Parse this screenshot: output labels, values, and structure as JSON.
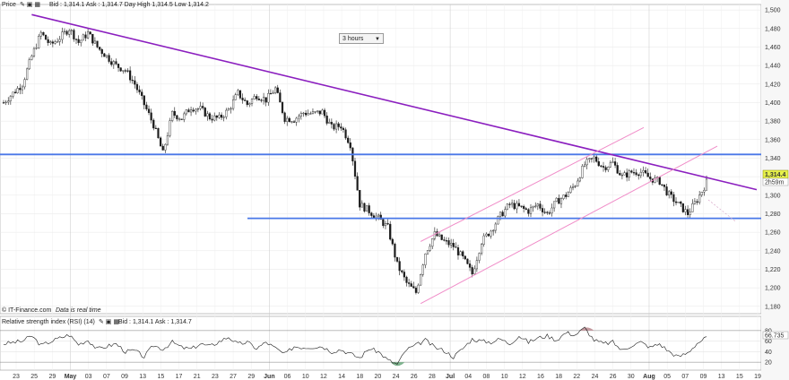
{
  "header": {
    "price_label": "Price",
    "bid_ask": "Bid : 1,314.1 Ask : 1,314.7 Day High 1,314.5 Low 1,314.2"
  },
  "timeframe": {
    "value": "3 hours"
  },
  "footer": {
    "source": "IT-Finance.com",
    "realtime": "Data is real time"
  },
  "rsi": {
    "header": "Relative strength index (RSI) (14)",
    "bid_ask": "Bid : 1,314.1 Ask : 1,314.7",
    "levels": [
      80,
      60,
      40,
      20
    ],
    "current": "66.735"
  },
  "price_badge": {
    "value": "1,314.4",
    "timer": "2h59m"
  },
  "colors": {
    "support": "#4a78e8",
    "trend": "#8b1fbf",
    "channel": "#f08cc8",
    "badge": "#e7f24a",
    "rsi_up": "#c59aa0",
    "rsi_down": "#7fb48f"
  },
  "chart_data": {
    "type": "candlestick",
    "y_ticks": [
      1180,
      1200,
      1220,
      1240,
      1260,
      1280,
      1300,
      1320,
      1340,
      1360,
      1380,
      1400,
      1420,
      1440,
      1460,
      1480,
      1500
    ],
    "y_tick_labels": [
      "1,180",
      "1,200",
      "1,220",
      "1,240",
      "1,260",
      "1,280",
      "1,300",
      "1,320",
      "1,340",
      "1,360",
      "1,380",
      "1,400",
      "1,420",
      "1,440",
      "1,460",
      "1,480",
      "1,500"
    ],
    "ylim": [
      1174,
      1504
    ],
    "x_day_ticks": [
      "23",
      "25",
      "29",
      "May",
      "03",
      "07",
      "09",
      "13",
      "15",
      "17",
      "21",
      "23",
      "27",
      "29",
      "Jun",
      "06",
      "10",
      "12",
      "14",
      "18",
      "20",
      "24",
      "26",
      "28",
      "Jul",
      "04",
      "08",
      "10",
      "12",
      "16",
      "18",
      "22",
      "24",
      "26",
      "30",
      "Aug",
      "05",
      "07",
      "09",
      "13",
      "15",
      "19"
    ],
    "month_labels": [
      "May",
      "Jun",
      "Jul",
      "Aug"
    ],
    "price_path": [
      [
        0,
        1400
      ],
      [
        2,
        1420
      ],
      [
        3,
        1450
      ],
      [
        4,
        1475
      ],
      [
        5,
        1462
      ],
      [
        6,
        1470
      ],
      [
        7,
        1480
      ],
      [
        8,
        1465
      ],
      [
        9,
        1475
      ],
      [
        10,
        1460
      ],
      [
        11,
        1450
      ],
      [
        12,
        1440
      ],
      [
        13,
        1435
      ],
      [
        14,
        1420
      ],
      [
        15,
        1398
      ],
      [
        16,
        1376
      ],
      [
        17,
        1345
      ],
      [
        18,
        1388
      ],
      [
        19,
        1383
      ],
      [
        20,
        1395
      ],
      [
        21,
        1393
      ],
      [
        22,
        1384
      ],
      [
        23,
        1383
      ],
      [
        24,
        1392
      ],
      [
        25,
        1410
      ],
      [
        26,
        1398
      ],
      [
        27,
        1408
      ],
      [
        28,
        1403
      ],
      [
        29,
        1415
      ],
      [
        30,
        1383
      ],
      [
        31,
        1382
      ],
      [
        32,
        1389
      ],
      [
        33,
        1388
      ],
      [
        34,
        1390
      ],
      [
        35,
        1373
      ],
      [
        36,
        1375
      ],
      [
        37,
        1355
      ],
      [
        38,
        1290
      ],
      [
        39,
        1283
      ],
      [
        40,
        1275
      ],
      [
        41,
        1265
      ],
      [
        42,
        1225
      ],
      [
        43,
        1205
      ],
      [
        44,
        1195
      ],
      [
        45,
        1238
      ],
      [
        46,
        1258
      ],
      [
        47,
        1250
      ],
      [
        48,
        1245
      ],
      [
        49,
        1232
      ],
      [
        50,
        1215
      ],
      [
        51,
        1250
      ],
      [
        52,
        1262
      ],
      [
        53,
        1278
      ],
      [
        54,
        1290
      ],
      [
        55,
        1287
      ],
      [
        56,
        1283
      ],
      [
        57,
        1290
      ],
      [
        58,
        1280
      ],
      [
        59,
        1293
      ],
      [
        60,
        1300
      ],
      [
        61,
        1312
      ],
      [
        62,
        1333
      ],
      [
        63,
        1340
      ],
      [
        64,
        1330
      ],
      [
        65,
        1335
      ],
      [
        66,
        1320
      ],
      [
        67,
        1325
      ],
      [
        68,
        1325
      ],
      [
        69,
        1318
      ],
      [
        70,
        1315
      ],
      [
        71,
        1300
      ],
      [
        72,
        1290
      ],
      [
        73,
        1280
      ],
      [
        74,
        1295
      ],
      [
        75,
        1314
      ]
    ],
    "support_levels": [
      1344,
      1275
    ],
    "rsi_path": [
      [
        0,
        55
      ],
      [
        2,
        60
      ],
      [
        3,
        70
      ],
      [
        4,
        52
      ],
      [
        6,
        66
      ],
      [
        7,
        72
      ],
      [
        8,
        54
      ],
      [
        9,
        62
      ],
      [
        10,
        45
      ],
      [
        12,
        55
      ],
      [
        13,
        40
      ],
      [
        14,
        42
      ],
      [
        15,
        30
      ],
      [
        16,
        52
      ],
      [
        17,
        45
      ],
      [
        18,
        58
      ],
      [
        19,
        48
      ],
      [
        20,
        45
      ],
      [
        21,
        55
      ],
      [
        22,
        50
      ],
      [
        24,
        68
      ],
      [
        25,
        54
      ],
      [
        26,
        58
      ],
      [
        27,
        46
      ],
      [
        28,
        58
      ],
      [
        30,
        35
      ],
      [
        31,
        50
      ],
      [
        32,
        48
      ],
      [
        34,
        50
      ],
      [
        35,
        40
      ],
      [
        36,
        44
      ],
      [
        37,
        36
      ],
      [
        38,
        28
      ],
      [
        39,
        46
      ],
      [
        40,
        40
      ],
      [
        41,
        24
      ],
      [
        42,
        16
      ],
      [
        43,
        44
      ],
      [
        44,
        52
      ],
      [
        45,
        62
      ],
      [
        46,
        48
      ],
      [
        47,
        42
      ],
      [
        48,
        30
      ],
      [
        49,
        46
      ],
      [
        50,
        64
      ],
      [
        51,
        60
      ],
      [
        52,
        58
      ],
      [
        53,
        64
      ],
      [
        54,
        55
      ],
      [
        55,
        70
      ],
      [
        56,
        58
      ],
      [
        57,
        66
      ],
      [
        58,
        70
      ],
      [
        59,
        62
      ],
      [
        60,
        76
      ],
      [
        61,
        72
      ],
      [
        62,
        85
      ],
      [
        63,
        62
      ],
      [
        64,
        55
      ],
      [
        65,
        58
      ],
      [
        66,
        42
      ],
      [
        67,
        52
      ],
      [
        68,
        58
      ],
      [
        69,
        48
      ],
      [
        70,
        55
      ],
      [
        71,
        40
      ],
      [
        72,
        30
      ],
      [
        73,
        38
      ],
      [
        74,
        56
      ],
      [
        75,
        67
      ]
    ]
  }
}
